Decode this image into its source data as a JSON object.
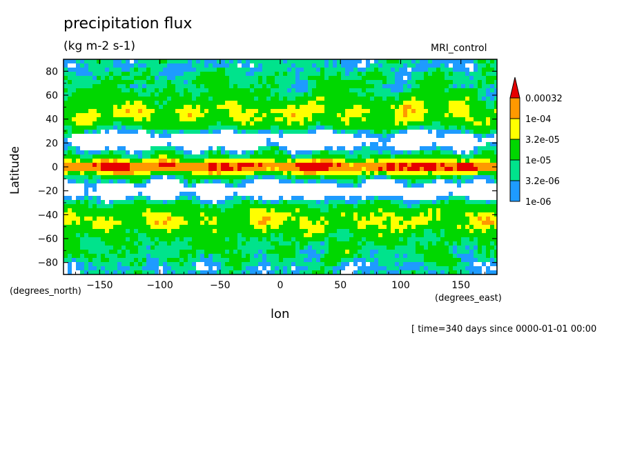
{
  "chart_data": {
    "type": "contour",
    "title": "precipitation flux",
    "units": "(kg m-2 s-1)",
    "model": "MRI_control",
    "xlabel": "lon",
    "ylabel": "Latitude",
    "x_units": "(degrees_east)",
    "y_units": "(degrees_north)",
    "xlim": [
      -180,
      180
    ],
    "ylim": [
      -90,
      90
    ],
    "x_ticks": [
      -150,
      -100,
      -50,
      0,
      50,
      100,
      150
    ],
    "y_ticks": [
      80,
      60,
      40,
      20,
      0,
      -20,
      -40,
      -60,
      -80
    ],
    "levels": [
      "1e-06",
      "3.2e-06",
      "1e-05",
      "3.2e-05",
      "1e-04",
      "0.00032"
    ],
    "colors": [
      "#1e9bff",
      "#00e38c",
      "#00d700",
      "#ffff00",
      "#ff9900",
      "#e60000"
    ],
    "footer": "[ time=340 days since 0000-01-01 00:00"
  }
}
